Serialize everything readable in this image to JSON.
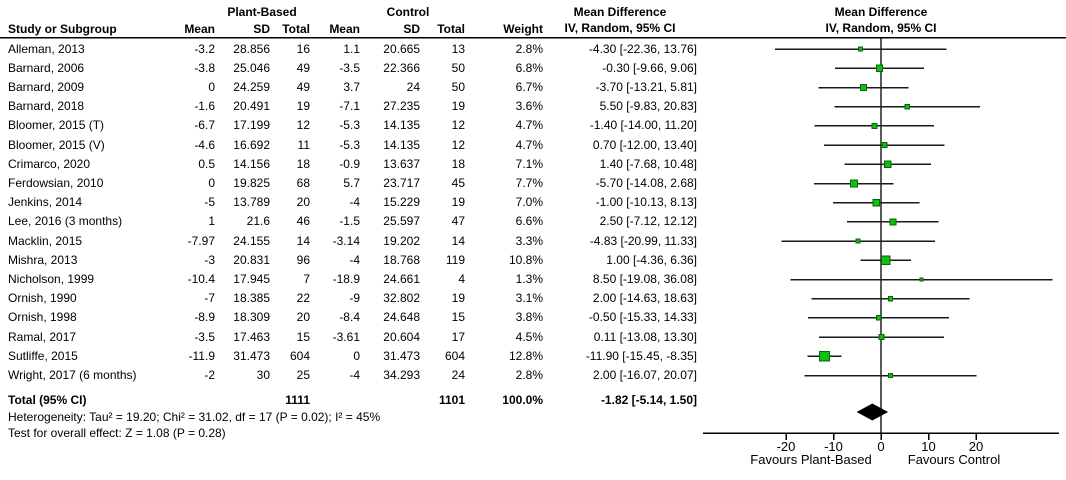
{
  "chart_data": {
    "type": "forest",
    "effect_measure": "Mean Difference",
    "method": "IV, Random, 95% CI",
    "groups": {
      "treatment": "Plant-Based",
      "control": "Control"
    },
    "columns": {
      "study": "Study or Subgroup",
      "mean": "Mean",
      "sd": "SD",
      "total": "Total",
      "weight": "Weight"
    },
    "studies": [
      {
        "name": "Alleman, 2013",
        "t_mean": "-3.2",
        "t_sd": "28.856",
        "t_n": "16",
        "c_mean": "1.1",
        "c_sd": "20.665",
        "c_n": "13",
        "weight": "2.8%",
        "weight_pct": 2.8,
        "ci_label": "-4.30 [-22.36, 13.76]",
        "est": -4.3,
        "lo": -22.36,
        "hi": 13.76
      },
      {
        "name": "Barnard, 2006",
        "t_mean": "-3.8",
        "t_sd": "25.046",
        "t_n": "49",
        "c_mean": "-3.5",
        "c_sd": "22.366",
        "c_n": "50",
        "weight": "6.8%",
        "weight_pct": 6.8,
        "ci_label": "-0.30 [-9.66, 9.06]",
        "est": -0.3,
        "lo": -9.66,
        "hi": 9.06
      },
      {
        "name": "Barnard, 2009",
        "t_mean": "0",
        "t_sd": "24.259",
        "t_n": "49",
        "c_mean": "3.7",
        "c_sd": "24",
        "c_n": "50",
        "weight": "6.7%",
        "weight_pct": 6.7,
        "ci_label": "-3.70 [-13.21, 5.81]",
        "est": -3.7,
        "lo": -13.21,
        "hi": 5.81
      },
      {
        "name": "Barnard, 2018",
        "t_mean": "-1.6",
        "t_sd": "20.491",
        "t_n": "19",
        "c_mean": "-7.1",
        "c_sd": "27.235",
        "c_n": "19",
        "weight": "3.6%",
        "weight_pct": 3.6,
        "ci_label": "5.50 [-9.83, 20.83]",
        "est": 5.5,
        "lo": -9.83,
        "hi": 20.83
      },
      {
        "name": "Bloomer, 2015 (T)",
        "t_mean": "-6.7",
        "t_sd": "17.199",
        "t_n": "12",
        "c_mean": "-5.3",
        "c_sd": "14.135",
        "c_n": "12",
        "weight": "4.7%",
        "weight_pct": 4.7,
        "ci_label": "-1.40 [-14.00, 11.20]",
        "est": -1.4,
        "lo": -14.0,
        "hi": 11.2
      },
      {
        "name": "Bloomer, 2015 (V)",
        "t_mean": "-4.6",
        "t_sd": "16.692",
        "t_n": "11",
        "c_mean": "-5.3",
        "c_sd": "14.135",
        "c_n": "12",
        "weight": "4.7%",
        "weight_pct": 4.7,
        "ci_label": "0.70 [-12.00, 13.40]",
        "est": 0.7,
        "lo": -12.0,
        "hi": 13.4
      },
      {
        "name": "Crimarco, 2020",
        "t_mean": "0.5",
        "t_sd": "14.156",
        "t_n": "18",
        "c_mean": "-0.9",
        "c_sd": "13.637",
        "c_n": "18",
        "weight": "7.1%",
        "weight_pct": 7.1,
        "ci_label": "1.40 [-7.68, 10.48]",
        "est": 1.4,
        "lo": -7.68,
        "hi": 10.48
      },
      {
        "name": "Ferdowsian, 2010",
        "t_mean": "0",
        "t_sd": "19.825",
        "t_n": "68",
        "c_mean": "5.7",
        "c_sd": "23.717",
        "c_n": "45",
        "weight": "7.7%",
        "weight_pct": 7.7,
        "ci_label": "-5.70 [-14.08, 2.68]",
        "est": -5.7,
        "lo": -14.08,
        "hi": 2.68
      },
      {
        "name": "Jenkins, 2014",
        "t_mean": "-5",
        "t_sd": "13.789",
        "t_n": "20",
        "c_mean": "-4",
        "c_sd": "15.229",
        "c_n": "19",
        "weight": "7.0%",
        "weight_pct": 7.0,
        "ci_label": "-1.00 [-10.13, 8.13]",
        "est": -1.0,
        "lo": -10.13,
        "hi": 8.13
      },
      {
        "name": "Lee, 2016 (3 months)",
        "t_mean": "1",
        "t_sd": "21.6",
        "t_n": "46",
        "c_mean": "-1.5",
        "c_sd": "25.597",
        "c_n": "47",
        "weight": "6.6%",
        "weight_pct": 6.6,
        "ci_label": "2.50 [-7.12, 12.12]",
        "est": 2.5,
        "lo": -7.12,
        "hi": 12.12
      },
      {
        "name": "Macklin, 2015",
        "t_mean": "-7.97",
        "t_sd": "24.155",
        "t_n": "14",
        "c_mean": "-3.14",
        "c_sd": "19.202",
        "c_n": "14",
        "weight": "3.3%",
        "weight_pct": 3.3,
        "ci_label": "-4.83 [-20.99, 11.33]",
        "est": -4.83,
        "lo": -20.99,
        "hi": 11.33
      },
      {
        "name": "Mishra, 2013",
        "t_mean": "-3",
        "t_sd": "20.831",
        "t_n": "96",
        "c_mean": "-4",
        "c_sd": "18.768",
        "c_n": "119",
        "weight": "10.8%",
        "weight_pct": 10.8,
        "ci_label": "1.00 [-4.36, 6.36]",
        "est": 1.0,
        "lo": -4.36,
        "hi": 6.36
      },
      {
        "name": "Nicholson, 1999",
        "t_mean": "-10.4",
        "t_sd": "17.945",
        "t_n": "7",
        "c_mean": "-18.9",
        "c_sd": "24.661",
        "c_n": "4",
        "weight": "1.3%",
        "weight_pct": 1.3,
        "ci_label": "8.50 [-19.08, 36.08]",
        "est": 8.5,
        "lo": -19.08,
        "hi": 36.08
      },
      {
        "name": "Ornish, 1990",
        "t_mean": "-7",
        "t_sd": "18.385",
        "t_n": "22",
        "c_mean": "-9",
        "c_sd": "32.802",
        "c_n": "19",
        "weight": "3.1%",
        "weight_pct": 3.1,
        "ci_label": "2.00 [-14.63, 18.63]",
        "est": 2.0,
        "lo": -14.63,
        "hi": 18.63
      },
      {
        "name": "Ornish, 1998",
        "t_mean": "-8.9",
        "t_sd": "18.309",
        "t_n": "20",
        "c_mean": "-8.4",
        "c_sd": "24.648",
        "c_n": "15",
        "weight": "3.8%",
        "weight_pct": 3.8,
        "ci_label": "-0.50 [-15.33, 14.33]",
        "est": -0.5,
        "lo": -15.33,
        "hi": 14.33
      },
      {
        "name": "Ramal, 2017",
        "t_mean": "-3.5",
        "t_sd": "17.463",
        "t_n": "15",
        "c_mean": "-3.61",
        "c_sd": "20.604",
        "c_n": "17",
        "weight": "4.5%",
        "weight_pct": 4.5,
        "ci_label": "0.11 [-13.08, 13.30]",
        "est": 0.11,
        "lo": -13.08,
        "hi": 13.3
      },
      {
        "name": "Sutliffe, 2015",
        "t_mean": "-11.9",
        "t_sd": "31.473",
        "t_n": "604",
        "c_mean": "0",
        "c_sd": "31.473",
        "c_n": "604",
        "weight": "12.8%",
        "weight_pct": 12.8,
        "ci_label": "-11.90 [-15.45, -8.35]",
        "est": -11.9,
        "lo": -15.45,
        "hi": -8.35
      },
      {
        "name": "Wright, 2017 (6 months)",
        "t_mean": "-2",
        "t_sd": "30",
        "t_n": "25",
        "c_mean": "-4",
        "c_sd": "34.293",
        "c_n": "24",
        "weight": "2.8%",
        "weight_pct": 2.8,
        "ci_label": "2.00 [-16.07, 20.07]",
        "est": 2.0,
        "lo": -16.07,
        "hi": 20.07
      }
    ],
    "total": {
      "label": "Total (95% CI)",
      "t_n": "1111",
      "c_n": "1101",
      "weight": "100.0%",
      "ci_label": "-1.82 [-5.14, 1.50]",
      "est": -1.82,
      "lo": -5.14,
      "hi": 1.5
    },
    "heterogeneity": "Heterogeneity: Tau² = 19.20; Chi² = 31.02, df = 17 (P = 0.02); I² = 45%",
    "overall_effect": "Test for overall effect: Z = 1.08 (P = 0.28)",
    "axis": {
      "ticks": [
        -20,
        -10,
        0,
        10,
        20
      ],
      "xlim": [
        -37.5,
        37.5
      ],
      "favours_left": "Favours Plant-Based",
      "favours_right": "Favours Control"
    },
    "colors": {
      "square_fill": "#0fbf0f",
      "square_border": "#0a660a",
      "ci_line": "#1a1a1a",
      "zero_line": "#5a5a5a",
      "diamond": "#000000",
      "axis": "#000000"
    }
  }
}
